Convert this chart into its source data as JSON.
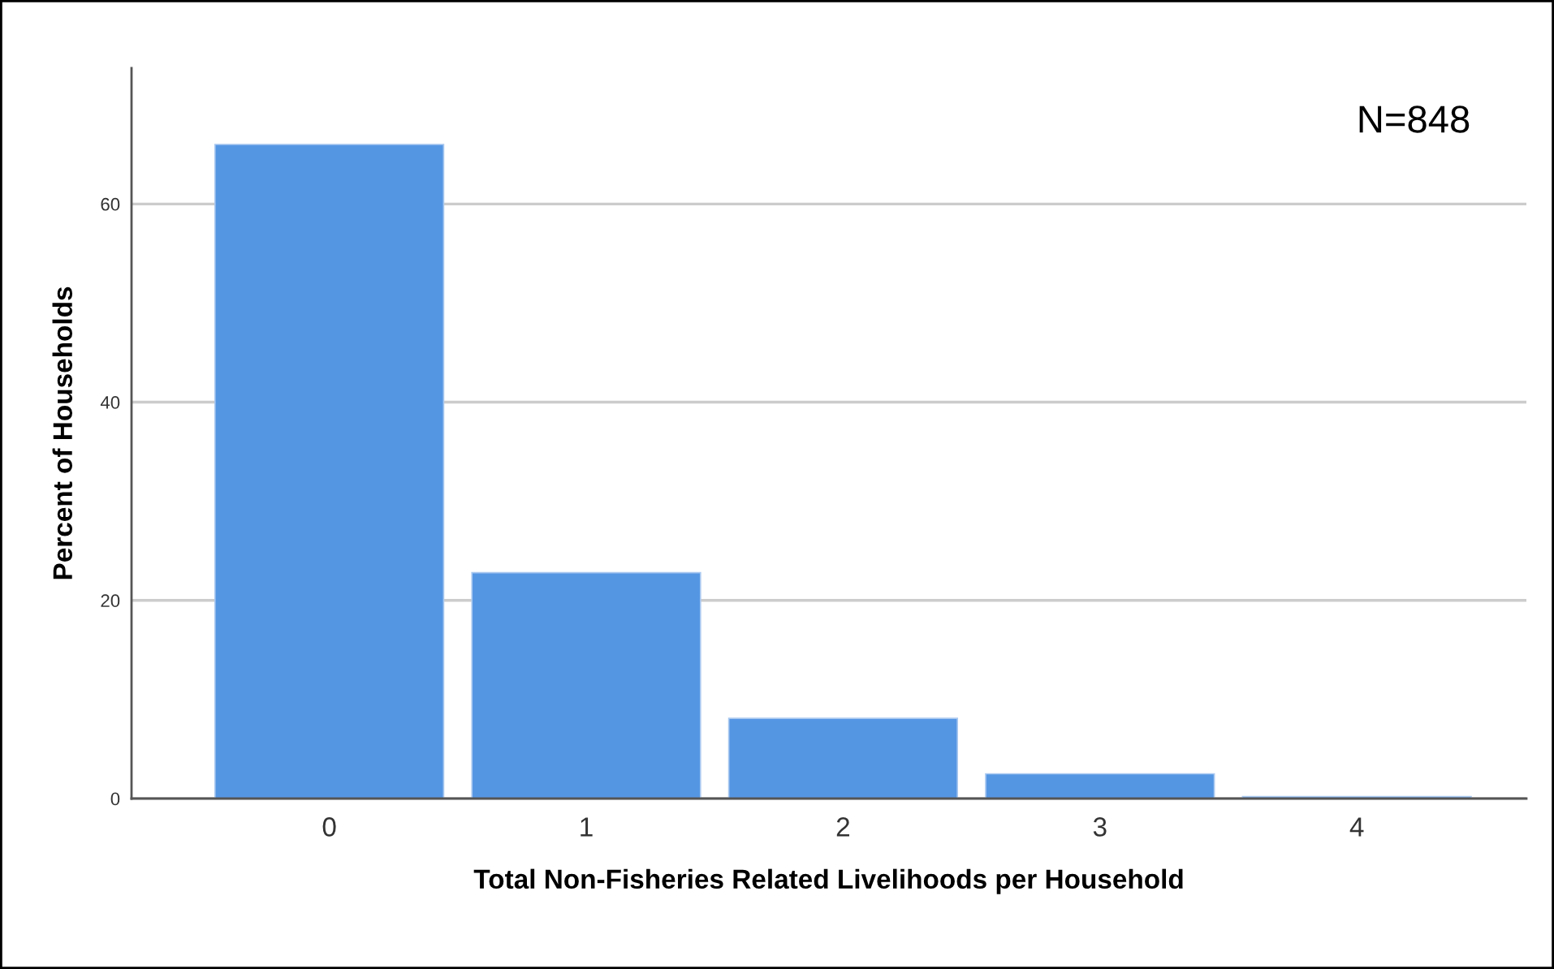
{
  "chart_data": {
    "type": "bar",
    "xlabel": "Total Non-Fisheries Related Livelihoods per Household",
    "ylabel": "Percent of Households",
    "categories": [
      "0",
      "1",
      "2",
      "3",
      "4"
    ],
    "values": [
      66,
      22.8,
      8.1,
      2.5,
      0.2
    ],
    "color": "#5596e3",
    "ylim": [
      0,
      73.7
    ],
    "yticks": [
      0,
      20,
      40,
      60
    ],
    "grid": "y",
    "annotations": [
      "N=848"
    ]
  }
}
